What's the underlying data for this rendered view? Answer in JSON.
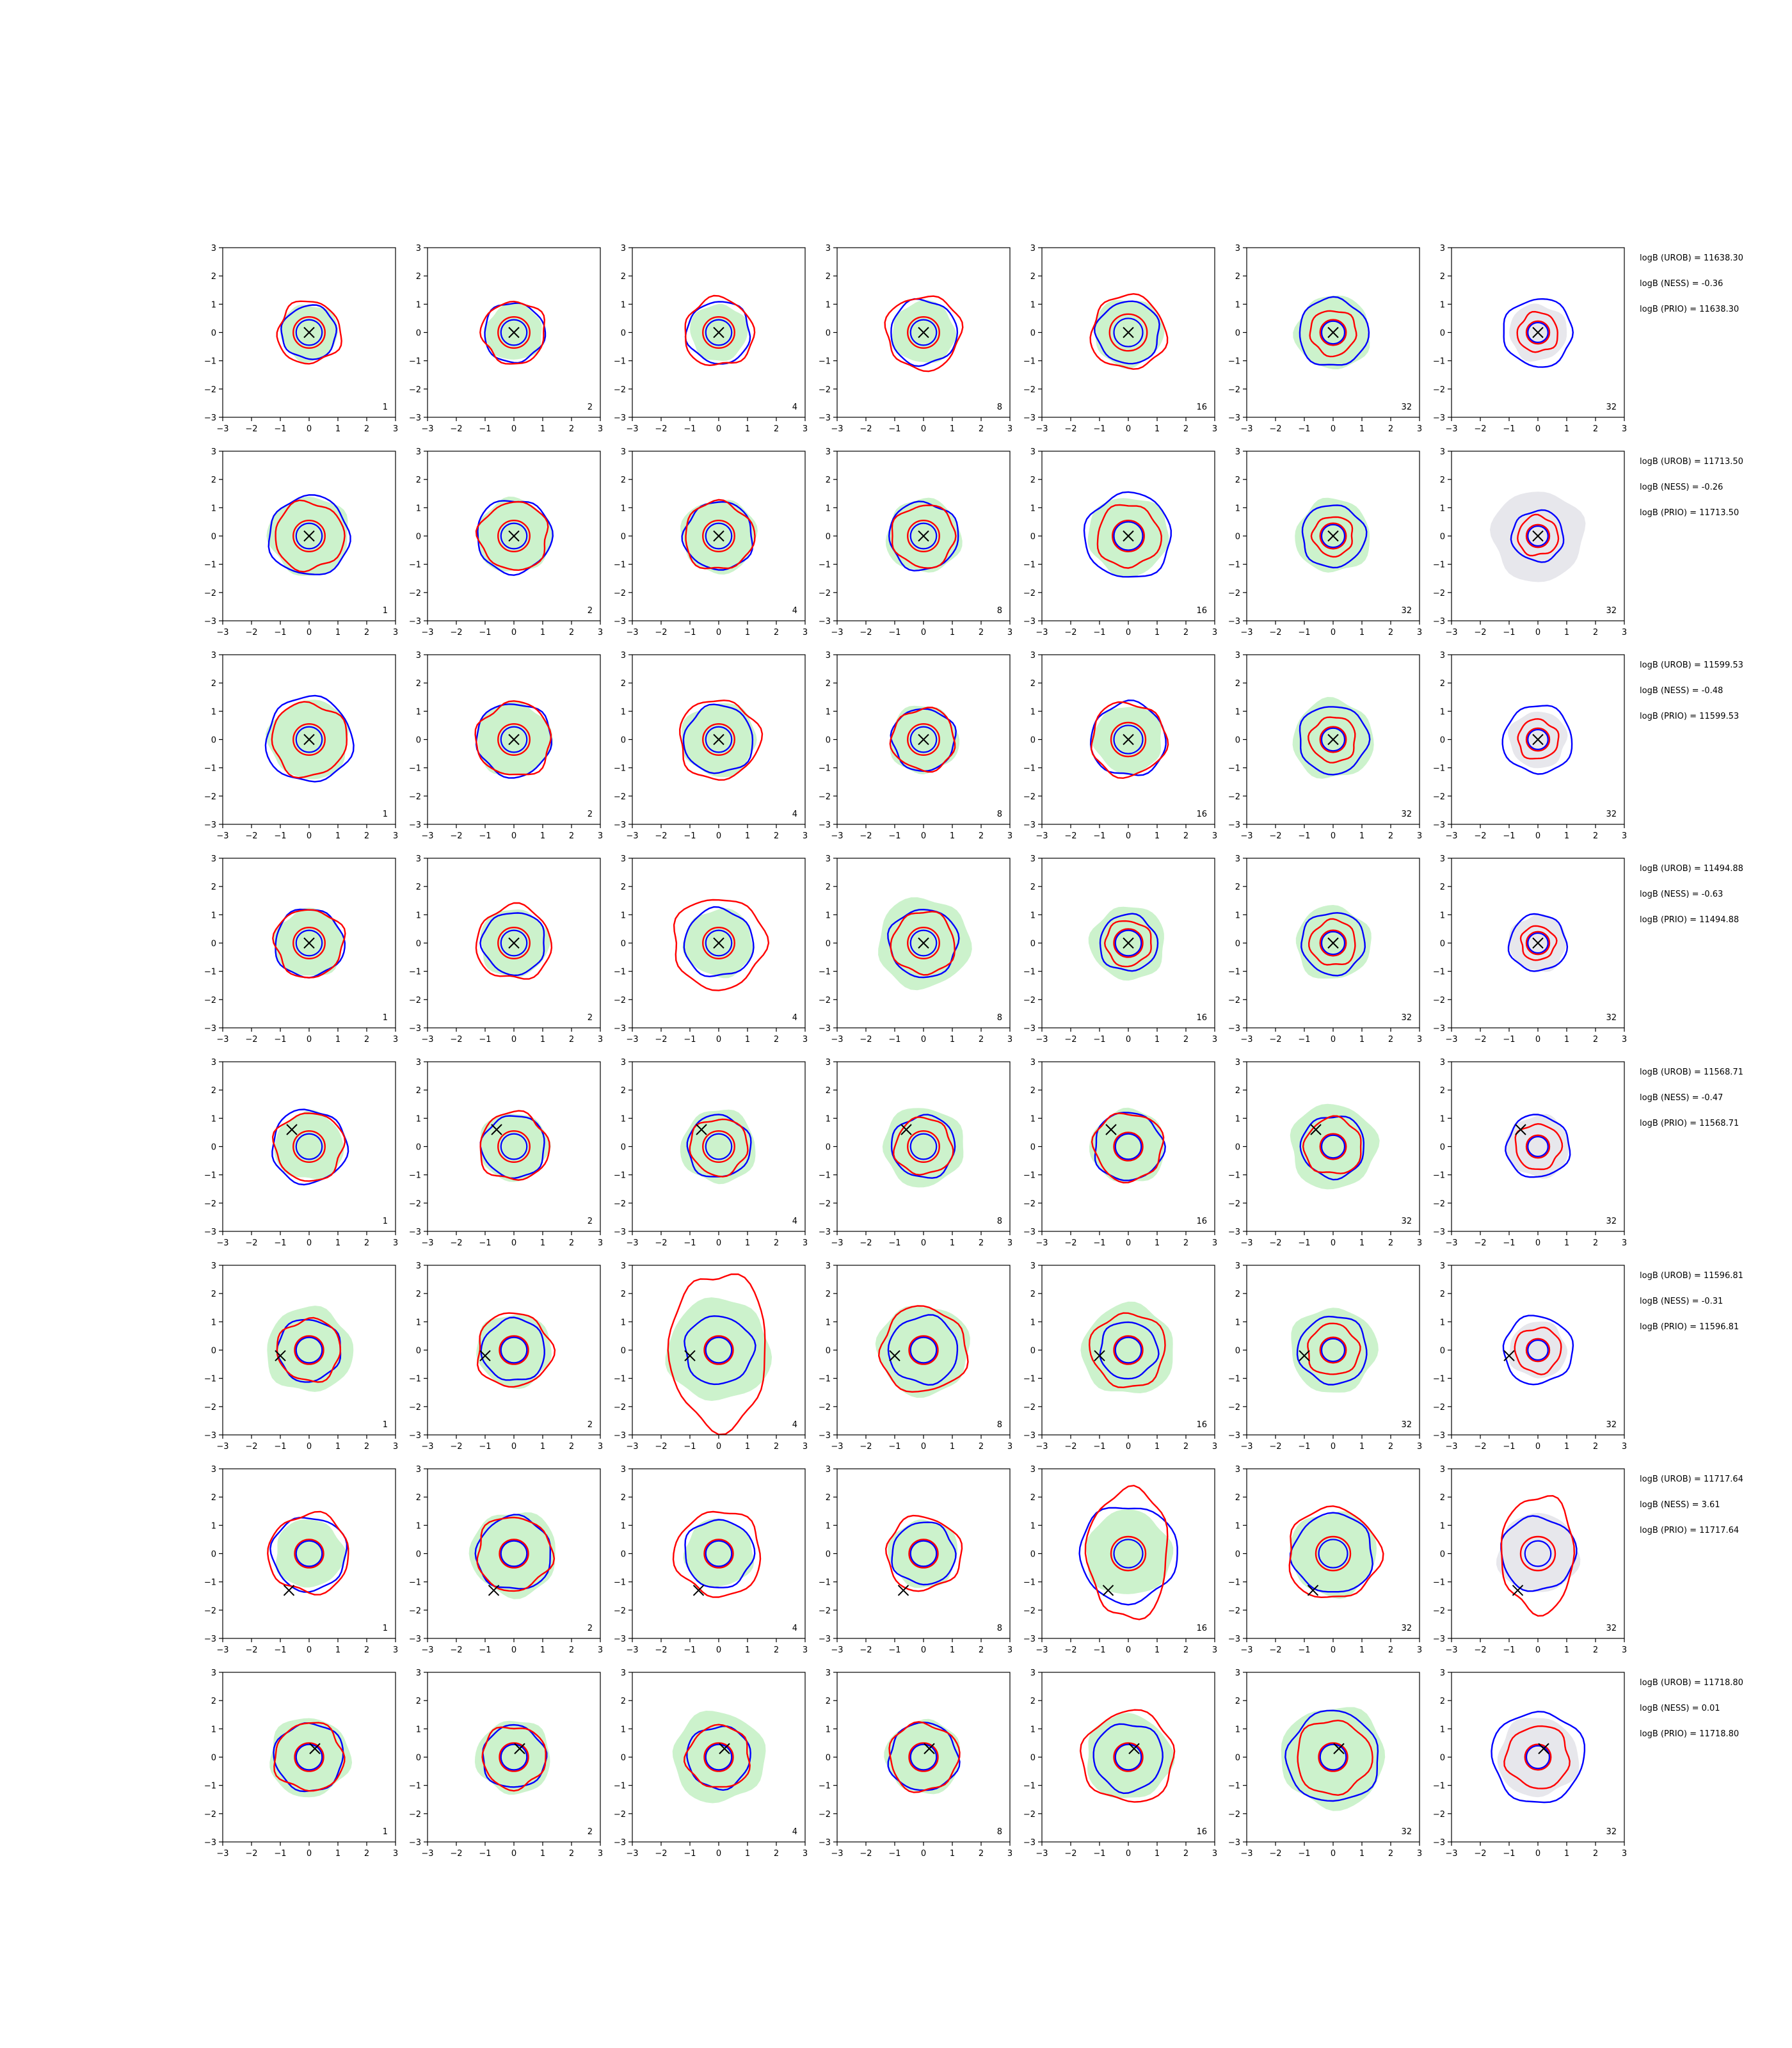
{
  "figure": {
    "columns": [
      "1",
      "2",
      "4",
      "8",
      "16",
      "32",
      "32"
    ],
    "axis": {
      "xlim": [
        -3,
        3
      ],
      "ylim": [
        -3,
        3
      ],
      "ticks": [
        -3,
        -2,
        -1,
        0,
        1,
        2,
        3
      ]
    }
  },
  "colors": {
    "fill_green": "#ccf2cc",
    "fill_grey": "#e7e7ec",
    "blue": "#0000ff",
    "red": "#ff0000",
    "marker": "#000000"
  },
  "chart_data": {
    "type": "contour-grid",
    "rows": [
      {
        "labels": [
          "logB (UROB) = 11638.30",
          "logB (NESS) = -0.36",
          "logB (PRIO) = 11638.30"
        ],
        "marker": [
          0,
          0
        ],
        "panels": [
          {
            "fill": 1.0,
            "blue": 0.95,
            "red": 1.1,
            "ired": 0.55,
            "iblu": 0.45
          },
          {
            "fill": 1.0,
            "blue": 1.05,
            "red": 1.1,
            "ired": 0.55,
            "iblu": 0.45
          },
          {
            "fill": 1.0,
            "blue": 1.1,
            "red": 1.2,
            "ired": 0.55,
            "iblu": 0.45
          },
          {
            "fill": 1.1,
            "blue": 1.15,
            "red": 1.3,
            "ired": 0.55,
            "iblu": 0.45
          },
          {
            "fill": 1.2,
            "blue": 1.1,
            "red": 1.3,
            "ired": 0.65,
            "iblu": 0.5
          },
          {
            "fill": 1.3,
            "blue": 1.2,
            "red": 0.8,
            "ired": 0.45,
            "iblu": 0.4
          },
          {
            "fill": 1.0,
            "blue": 1.2,
            "red": 0.7,
            "ired": 0.4,
            "iblu": 0.35,
            "grey": true
          }
        ]
      },
      {
        "labels": [
          "logB (UROB) = 11713.50",
          "logB (NESS) = -0.26",
          "logB (PRIO) = 11713.50"
        ],
        "marker": [
          0,
          0
        ],
        "panels": [
          {
            "fill": 1.4,
            "blue": 1.4,
            "red": 1.2,
            "ired": 0.55,
            "iblu": 0.45
          },
          {
            "fill": 1.3,
            "blue": 1.3,
            "red": 1.2,
            "ired": 0.55,
            "iblu": 0.45
          },
          {
            "fill": 1.3,
            "blue": 1.2,
            "red": 1.2,
            "ired": 0.55,
            "iblu": 0.45
          },
          {
            "fill": 1.3,
            "blue": 1.2,
            "red": 1.1,
            "ired": 0.55,
            "iblu": 0.45
          },
          {
            "fill": 1.4,
            "blue": 1.5,
            "red": 1.1,
            "ired": 0.55,
            "iblu": 0.5
          },
          {
            "fill": 1.3,
            "blue": 1.1,
            "red": 0.7,
            "ired": 0.45,
            "iblu": 0.4
          },
          {
            "fill": 1.6,
            "blue": 0.9,
            "red": 0.7,
            "ired": 0.4,
            "iblu": 0.35,
            "grey": true
          }
        ]
      },
      {
        "labels": [
          "logB (UROB) = 11599.53",
          "logB (NESS) = -0.48",
          "logB (PRIO) = 11599.53"
        ],
        "marker": [
          0,
          0
        ],
        "panels": [
          {
            "fill": 1.4,
            "blue": 1.5,
            "red": 1.3,
            "ired": 0.55,
            "iblu": 0.45
          },
          {
            "fill": 1.3,
            "blue": 1.3,
            "red": 1.3,
            "ired": 0.55,
            "iblu": 0.45
          },
          {
            "fill": 1.3,
            "blue": 1.2,
            "red": 1.4,
            "ired": 0.55,
            "iblu": 0.45
          },
          {
            "fill": 1.2,
            "blue": 1.1,
            "red": 1.1,
            "ired": 0.55,
            "iblu": 0.45
          },
          {
            "fill": 1.2,
            "blue": 1.3,
            "red": 1.3,
            "ired": 0.6,
            "iblu": 0.5
          },
          {
            "fill": 1.4,
            "blue": 1.2,
            "red": 0.8,
            "ired": 0.45,
            "iblu": 0.4
          },
          {
            "fill": 1.0,
            "blue": 1.2,
            "red": 0.7,
            "ired": 0.4,
            "iblu": 0.35,
            "grey": true
          }
        ]
      },
      {
        "labels": [
          "logB (UROB) = 11494.88",
          "logB (NESS) = -0.63",
          "logB (PRIO) = 11494.88"
        ],
        "marker": [
          0,
          0
        ],
        "panels": [
          {
            "fill": 1.2,
            "blue": 1.2,
            "red": 1.2,
            "ired": 0.55,
            "iblu": 0.45
          },
          {
            "fill": 1.2,
            "blue": 1.1,
            "red": 1.3,
            "ired": 0.55,
            "iblu": 0.45
          },
          {
            "fill": 1.2,
            "blue": 1.2,
            "red": 1.6,
            "ired": 0.55,
            "iblu": 0.45
          },
          {
            "fill": 1.6,
            "blue": 1.2,
            "red": 1.1,
            "ired": 0.55,
            "iblu": 0.45
          },
          {
            "fill": 1.3,
            "blue": 1.0,
            "red": 0.8,
            "ired": 0.5,
            "iblu": 0.45
          },
          {
            "fill": 1.3,
            "blue": 1.1,
            "red": 0.8,
            "ired": 0.45,
            "iblu": 0.4
          },
          {
            "fill": 1.0,
            "blue": 1.0,
            "red": 0.6,
            "ired": 0.4,
            "iblu": 0.35,
            "grey": true
          }
        ]
      },
      {
        "labels": [
          "logB (UROB) = 11568.71",
          "logB (NESS) = -0.47",
          "logB (PRIO) = 11568.71"
        ],
        "marker": [
          -0.6,
          0.6
        ],
        "panels": [
          {
            "fill": 1.2,
            "blue": 1.3,
            "red": 1.2,
            "ired": 0.55,
            "iblu": 0.45
          },
          {
            "fill": 1.2,
            "blue": 1.1,
            "red": 1.2,
            "ired": 0.55,
            "iblu": 0.45
          },
          {
            "fill": 1.3,
            "blue": 1.1,
            "red": 1.0,
            "ired": 0.55,
            "iblu": 0.45
          },
          {
            "fill": 1.4,
            "blue": 1.1,
            "red": 1.0,
            "ired": 0.55,
            "iblu": 0.45
          },
          {
            "fill": 1.3,
            "blue": 1.2,
            "red": 1.2,
            "ired": 0.5,
            "iblu": 0.45
          },
          {
            "fill": 1.5,
            "blue": 1.1,
            "red": 1.0,
            "ired": 0.45,
            "iblu": 0.4
          },
          {
            "fill": 1.1,
            "blue": 1.1,
            "red": 0.8,
            "ired": 0.4,
            "iblu": 0.35,
            "grey": true
          }
        ]
      },
      {
        "labels": [
          "logB (UROB) = 11596.81",
          "logB (NESS) = -0.31",
          "logB (PRIO) = 11596.81"
        ],
        "marker": [
          -1.0,
          -0.2
        ],
        "panels": [
          {
            "fill": 1.5,
            "blue": 1.1,
            "red": 1.1,
            "ired": 0.5,
            "iblu": 0.45
          },
          {
            "fill": 1.3,
            "blue": 1.1,
            "red": 1.3,
            "ired": 0.5,
            "iblu": 0.45
          },
          {
            "fill": 1.8,
            "blue": 1.2,
            "red": 2.4,
            "ired": 0.5,
            "iblu": 0.45
          },
          {
            "fill": 1.6,
            "blue": 1.2,
            "red": 1.5,
            "ired": 0.5,
            "iblu": 0.45
          },
          {
            "fill": 1.6,
            "blue": 1.0,
            "red": 1.3,
            "ired": 0.5,
            "iblu": 0.45
          },
          {
            "fill": 1.5,
            "blue": 1.2,
            "red": 0.9,
            "ired": 0.45,
            "iblu": 0.4
          },
          {
            "fill": 1.0,
            "blue": 1.2,
            "red": 0.8,
            "ired": 0.4,
            "iblu": 0.35,
            "grey": true
          }
        ]
      },
      {
        "labels": [
          "logB (UROB) = 11717.64",
          "logB (NESS) = 3.61",
          "logB (PRIO) = 11717.64"
        ],
        "marker": [
          -0.7,
          -1.3
        ],
        "panels": [
          {
            "fill": 1.2,
            "blue": 1.3,
            "red": 1.4,
            "ired": 0.5,
            "iblu": 0.45
          },
          {
            "fill": 1.5,
            "blue": 1.3,
            "red": 1.3,
            "ired": 0.5,
            "iblu": 0.45
          },
          {
            "fill": 1.2,
            "blue": 1.2,
            "red": 1.5,
            "ired": 0.5,
            "iblu": 0.45
          },
          {
            "fill": 1.2,
            "blue": 1.1,
            "red": 1.3,
            "ired": 0.5,
            "iblu": 0.45
          },
          {
            "fill": 1.5,
            "blue": 1.7,
            "red": 2.0,
            "ired": 0.6,
            "iblu": 0.5
          },
          {
            "fill": 1.5,
            "blue": 1.4,
            "red": 1.6,
            "ired": 0.6,
            "iblu": 0.5
          },
          {
            "fill": 1.4,
            "blue": 1.3,
            "red": 1.8,
            "ired": 0.6,
            "iblu": 0.45,
            "grey": true
          }
        ]
      },
      {
        "labels": [
          "logB (UROB) = 11718.80",
          "logB (NESS) = 0.01",
          "logB (PRIO) = 11718.80"
        ],
        "marker": [
          0.2,
          0.3
        ],
        "panels": [
          {
            "fill": 1.4,
            "blue": 1.2,
            "red": 1.2,
            "ired": 0.5,
            "iblu": 0.45
          },
          {
            "fill": 1.3,
            "blue": 1.1,
            "red": 1.1,
            "ired": 0.5,
            "iblu": 0.45
          },
          {
            "fill": 1.6,
            "blue": 1.1,
            "red": 1.1,
            "ired": 0.5,
            "iblu": 0.45
          },
          {
            "fill": 1.3,
            "blue": 1.2,
            "red": 1.2,
            "ired": 0.5,
            "iblu": 0.45
          },
          {
            "fill": 1.5,
            "blue": 1.2,
            "red": 1.6,
            "ired": 0.5,
            "iblu": 0.45
          },
          {
            "fill": 1.8,
            "blue": 1.6,
            "red": 1.3,
            "ired": 0.5,
            "iblu": 0.45
          },
          {
            "fill": 1.4,
            "blue": 1.6,
            "red": 1.1,
            "ired": 0.45,
            "iblu": 0.4,
            "grey": true
          }
        ]
      }
    ]
  }
}
